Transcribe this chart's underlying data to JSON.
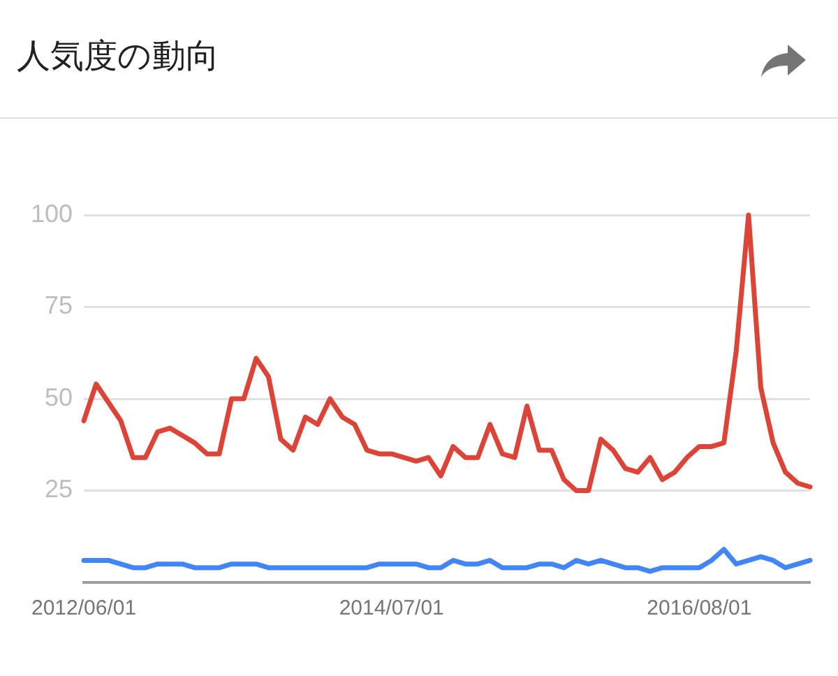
{
  "chart_data": {
    "type": "line",
    "title": "人気度の動向",
    "categories": [
      "2012/06/01",
      null,
      null,
      null,
      null,
      null,
      null,
      null,
      null,
      null,
      null,
      null,
      null,
      null,
      null,
      null,
      null,
      null,
      null,
      null,
      null,
      null,
      null,
      null,
      null,
      "2014/07/01",
      null,
      null,
      null,
      null,
      null,
      null,
      null,
      null,
      null,
      null,
      null,
      null,
      null,
      null,
      null,
      null,
      null,
      null,
      null,
      null,
      null,
      null,
      null,
      null,
      "2016/08/01",
      null,
      null,
      null,
      null,
      null,
      null,
      null,
      null,
      null
    ],
    "series": [
      {
        "color": "#db4437",
        "values": [
          44,
          54,
          49,
          44,
          34,
          34,
          41,
          42,
          40,
          38,
          35,
          35,
          50,
          50,
          61,
          56,
          39,
          36,
          45,
          43,
          50,
          45,
          43,
          36,
          35,
          35,
          34,
          33,
          34,
          29,
          37,
          34,
          34,
          43,
          35,
          34,
          48,
          36,
          36,
          28,
          25,
          25,
          39,
          36,
          31,
          30,
          34,
          28,
          30,
          34,
          37,
          37,
          38,
          63,
          100,
          53,
          38,
          30,
          27,
          26
        ]
      },
      {
        "color": "#4285f4",
        "values": [
          6,
          6,
          6,
          5,
          4,
          4,
          5,
          5,
          5,
          4,
          4,
          4,
          5,
          5,
          5,
          4,
          4,
          4,
          4,
          4,
          4,
          4,
          4,
          4,
          5,
          5,
          5,
          5,
          4,
          4,
          6,
          5,
          5,
          6,
          4,
          4,
          4,
          5,
          5,
          4,
          6,
          5,
          6,
          5,
          4,
          4,
          3,
          4,
          4,
          4,
          4,
          6,
          9,
          5,
          6,
          7,
          6,
          4,
          5,
          6
        ]
      }
    ],
    "ylim": [
      0,
      100
    ],
    "yticks": [
      25,
      50,
      75,
      100
    ],
    "grid": "y",
    "legend": false,
    "marker": "none",
    "line_style": "solid"
  }
}
